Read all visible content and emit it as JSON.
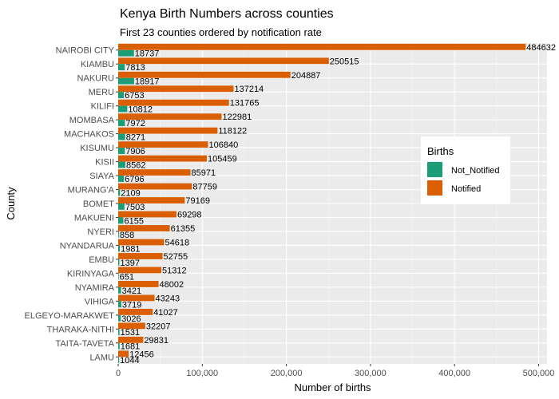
{
  "chart_data": {
    "type": "bar",
    "orientation": "horizontal",
    "title": "Kenya Birth Numbers across counties",
    "subtitle": "First 23 counties ordered by notification rate",
    "xlabel": "Number of births",
    "ylabel": "County",
    "xlim": [
      0,
      510000
    ],
    "x_ticks": [
      0,
      100000,
      200000,
      300000,
      400000,
      500000
    ],
    "x_tick_labels": [
      "0",
      "100,000",
      "200,000",
      "300,000",
      "400,000",
      "500,000"
    ],
    "grid": true,
    "legend_title": "Births",
    "legend_position": "right",
    "categories": [
      "NAIROBI CITY",
      "KIAMBU",
      "NAKURU",
      "MERU",
      "KILIFI",
      "MOMBASA",
      "MACHAKOS",
      "KISUMU",
      "KISII",
      "SIAYA",
      "MURANG'A",
      "BOMET",
      "MAKUENI",
      "NYERI",
      "NYANDARUA",
      "EMBU",
      "KIRINYAGA",
      "NYAMIRA",
      "VIHIGA",
      "ELGEYO-MARAKWET",
      "THARAKA-NITHI",
      "TAITA-TAVETA",
      "LAMU"
    ],
    "series": [
      {
        "name": "Not_Notified",
        "color": "#1b9e77",
        "values": [
          18737,
          7813,
          18917,
          6753,
          10812,
          7972,
          8271,
          7906,
          8562,
          6796,
          2109,
          7503,
          6155,
          858,
          1981,
          1397,
          651,
          3421,
          3719,
          3026,
          1531,
          1681,
          1044
        ]
      },
      {
        "name": "Notified",
        "color": "#d95f02",
        "values": [
          484632,
          250515,
          204887,
          137214,
          131765,
          122981,
          118122,
          106840,
          105459,
          85971,
          87759,
          79169,
          69298,
          61355,
          54618,
          52755,
          51312,
          48002,
          43243,
          41027,
          32207,
          29831,
          12456
        ]
      }
    ]
  }
}
